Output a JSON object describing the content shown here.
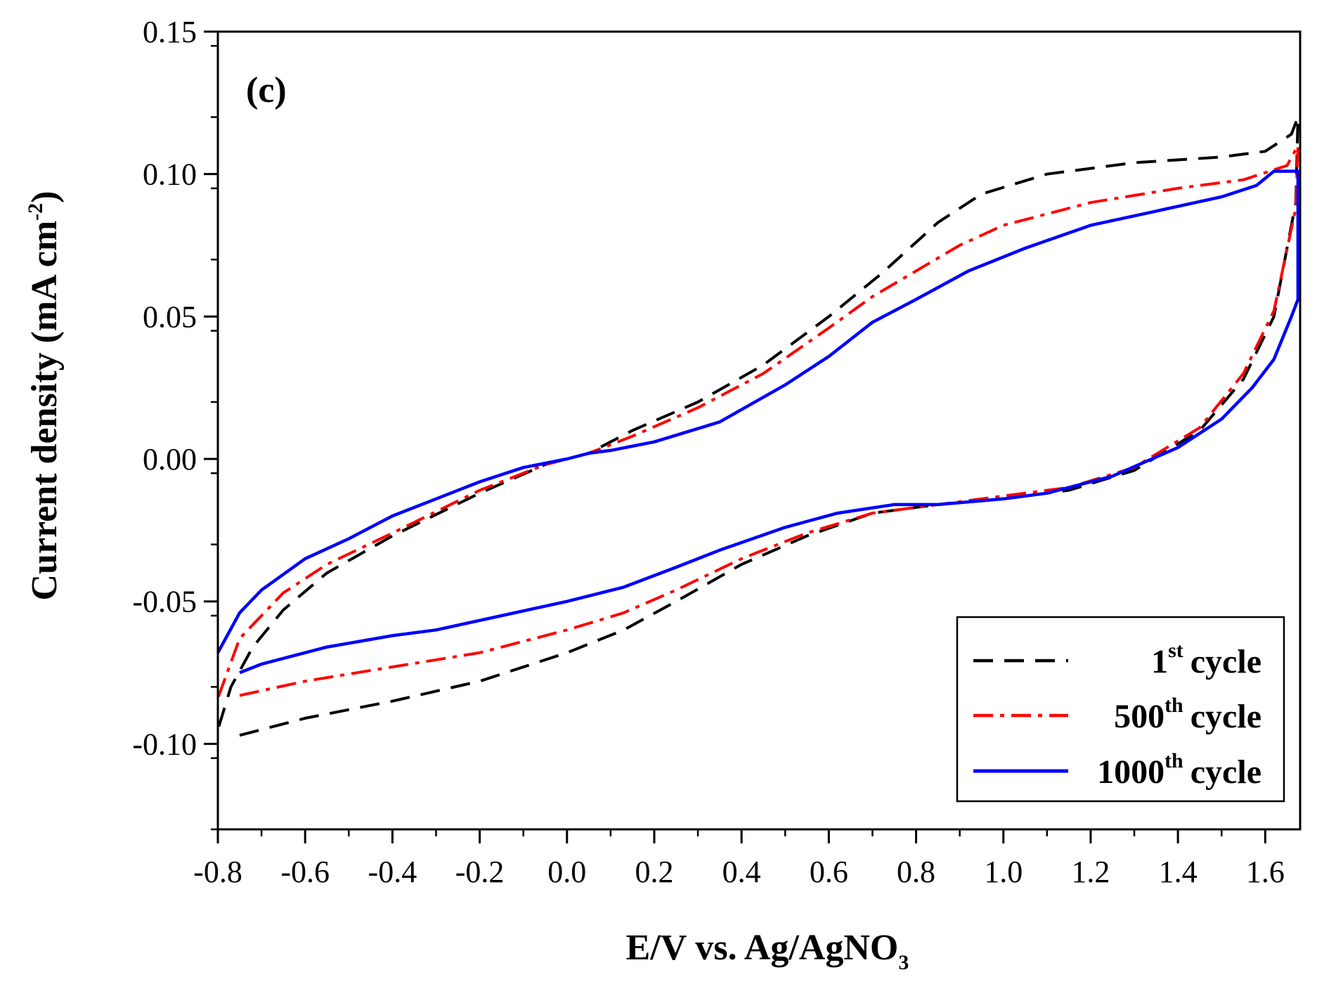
{
  "chart_data": {
    "type": "line",
    "panel_label": "(c)",
    "xlabel": {
      "main": "E/V vs. Ag/AgNO",
      "sub": "3"
    },
    "ylabel": {
      "main": "Current density (mA cm",
      "sup": "-2",
      "end": ")"
    },
    "xlim": [
      -0.8,
      1.68
    ],
    "ylim": [
      -0.13,
      0.15
    ],
    "x_ticks": [
      {
        "value": -0.8,
        "label": "-0.8"
      },
      {
        "value": -0.6,
        "label": "-0.6"
      },
      {
        "value": -0.4,
        "label": "-0.4"
      },
      {
        "value": -0.2,
        "label": "-0.2"
      },
      {
        "value": 0.0,
        "label": "0.0"
      },
      {
        "value": 0.2,
        "label": "0.2"
      },
      {
        "value": 0.4,
        "label": "0.4"
      },
      {
        "value": 0.6,
        "label": "0.6"
      },
      {
        "value": 0.8,
        "label": "0.8"
      },
      {
        "value": 1.0,
        "label": "1.0"
      },
      {
        "value": 1.2,
        "label": "1.2"
      },
      {
        "value": 1.4,
        "label": "1.4"
      },
      {
        "value": 1.6,
        "label": "1.6"
      }
    ],
    "y_ticks": [
      {
        "value": 0.15,
        "label": "0.15"
      },
      {
        "value": 0.1,
        "label": "0.10"
      },
      {
        "value": 0.05,
        "label": "0.05"
      },
      {
        "value": 0.0,
        "label": "0.00"
      },
      {
        "value": -0.05,
        "label": "-0.05"
      },
      {
        "value": -0.1,
        "label": "-0.10"
      }
    ],
    "x_minor_step": 0.1,
    "y_minor_step": 0.025,
    "legend_position": "bottom-right",
    "series": [
      {
        "name": "1st cycle",
        "legend_num": "1",
        "legend_sup": "st",
        "legend_word": "cycle",
        "color": "#000000",
        "style": "dashed",
        "points": [
          [
            -0.75,
            -0.097
          ],
          [
            -0.6,
            -0.091
          ],
          [
            -0.4,
            -0.085
          ],
          [
            -0.2,
            -0.078
          ],
          [
            0.0,
            -0.068
          ],
          [
            0.13,
            -0.06
          ],
          [
            0.25,
            -0.05
          ],
          [
            0.4,
            -0.037
          ],
          [
            0.55,
            -0.027
          ],
          [
            0.7,
            -0.019
          ],
          [
            0.85,
            -0.016
          ],
          [
            1.0,
            -0.014
          ],
          [
            1.15,
            -0.011
          ],
          [
            1.3,
            -0.004
          ],
          [
            1.45,
            0.01
          ],
          [
            1.55,
            0.028
          ],
          [
            1.62,
            0.05
          ],
          [
            1.67,
            0.09
          ],
          [
            1.675,
            0.12
          ],
          [
            1.66,
            0.114
          ],
          [
            1.6,
            0.108
          ],
          [
            1.5,
            0.106
          ],
          [
            1.3,
            0.104
          ],
          [
            1.1,
            0.1
          ],
          [
            0.95,
            0.093
          ],
          [
            0.85,
            0.083
          ],
          [
            0.72,
            0.065
          ],
          [
            0.6,
            0.05
          ],
          [
            0.45,
            0.033
          ],
          [
            0.3,
            0.02
          ],
          [
            0.15,
            0.01
          ],
          [
            0.05,
            0.002
          ],
          [
            -0.05,
            -0.002
          ],
          [
            -0.2,
            -0.012
          ],
          [
            -0.4,
            -0.027
          ],
          [
            -0.55,
            -0.04
          ],
          [
            -0.65,
            -0.053
          ],
          [
            -0.72,
            -0.066
          ],
          [
            -0.77,
            -0.08
          ],
          [
            -0.8,
            -0.095
          ]
        ]
      },
      {
        "name": "500th cycle",
        "legend_num": "500",
        "legend_sup": "th",
        "legend_word": "cycle",
        "color": "#ff0000",
        "style": "dashdot",
        "points": [
          [
            -0.75,
            -0.083
          ],
          [
            -0.6,
            -0.078
          ],
          [
            -0.4,
            -0.073
          ],
          [
            -0.2,
            -0.068
          ],
          [
            0.0,
            -0.06
          ],
          [
            0.13,
            -0.054
          ],
          [
            0.25,
            -0.046
          ],
          [
            0.4,
            -0.035
          ],
          [
            0.55,
            -0.026
          ],
          [
            0.7,
            -0.019
          ],
          [
            0.85,
            -0.016
          ],
          [
            1.0,
            -0.013
          ],
          [
            1.15,
            -0.01
          ],
          [
            1.3,
            -0.003
          ],
          [
            1.45,
            0.011
          ],
          [
            1.55,
            0.03
          ],
          [
            1.62,
            0.052
          ],
          [
            1.67,
            0.088
          ],
          [
            1.675,
            0.11
          ],
          [
            1.65,
            0.103
          ],
          [
            1.55,
            0.098
          ],
          [
            1.4,
            0.095
          ],
          [
            1.2,
            0.09
          ],
          [
            1.0,
            0.082
          ],
          [
            0.9,
            0.075
          ],
          [
            0.8,
            0.066
          ],
          [
            0.7,
            0.057
          ],
          [
            0.6,
            0.046
          ],
          [
            0.45,
            0.03
          ],
          [
            0.3,
            0.018
          ],
          [
            0.15,
            0.008
          ],
          [
            0.05,
            0.002
          ],
          [
            -0.05,
            -0.002
          ],
          [
            -0.2,
            -0.011
          ],
          [
            -0.4,
            -0.026
          ],
          [
            -0.55,
            -0.037
          ],
          [
            -0.65,
            -0.047
          ],
          [
            -0.75,
            -0.063
          ],
          [
            -0.8,
            -0.084
          ]
        ]
      },
      {
        "name": "1000th cycle",
        "legend_num": "1000",
        "legend_sup": "th",
        "legend_word": "cycle",
        "color": "#0000ff",
        "style": "solid",
        "points": [
          [
            -0.75,
            -0.075
          ],
          [
            -0.7,
            -0.072
          ],
          [
            -0.55,
            -0.066
          ],
          [
            -0.4,
            -0.062
          ],
          [
            -0.3,
            -0.06
          ],
          [
            -0.15,
            -0.055
          ],
          [
            0.0,
            -0.05
          ],
          [
            0.13,
            -0.045
          ],
          [
            0.25,
            -0.038
          ],
          [
            0.35,
            -0.032
          ],
          [
            0.5,
            -0.024
          ],
          [
            0.62,
            -0.019
          ],
          [
            0.75,
            -0.016
          ],
          [
            0.85,
            -0.016
          ],
          [
            1.0,
            -0.014
          ],
          [
            1.1,
            -0.012
          ],
          [
            1.25,
            -0.006
          ],
          [
            1.4,
            0.004
          ],
          [
            1.5,
            0.014
          ],
          [
            1.57,
            0.025
          ],
          [
            1.62,
            0.035
          ],
          [
            1.66,
            0.05
          ],
          [
            1.675,
            0.056
          ],
          [
            1.675,
            0.101
          ],
          [
            1.62,
            0.101
          ],
          [
            1.58,
            0.096
          ],
          [
            1.5,
            0.092
          ],
          [
            1.35,
            0.087
          ],
          [
            1.2,
            0.082
          ],
          [
            1.05,
            0.074
          ],
          [
            0.92,
            0.066
          ],
          [
            0.8,
            0.056
          ],
          [
            0.7,
            0.048
          ],
          [
            0.6,
            0.036
          ],
          [
            0.5,
            0.026
          ],
          [
            0.35,
            0.013
          ],
          [
            0.2,
            0.006
          ],
          [
            0.1,
            0.003
          ],
          [
            0.05,
            0.002
          ],
          [
            0.0,
            0.0
          ],
          [
            -0.1,
            -0.003
          ],
          [
            -0.2,
            -0.008
          ],
          [
            -0.3,
            -0.014
          ],
          [
            -0.4,
            -0.02
          ],
          [
            -0.5,
            -0.028
          ],
          [
            -0.6,
            -0.035
          ],
          [
            -0.7,
            -0.046
          ],
          [
            -0.75,
            -0.054
          ],
          [
            -0.8,
            -0.068
          ]
        ]
      }
    ]
  }
}
